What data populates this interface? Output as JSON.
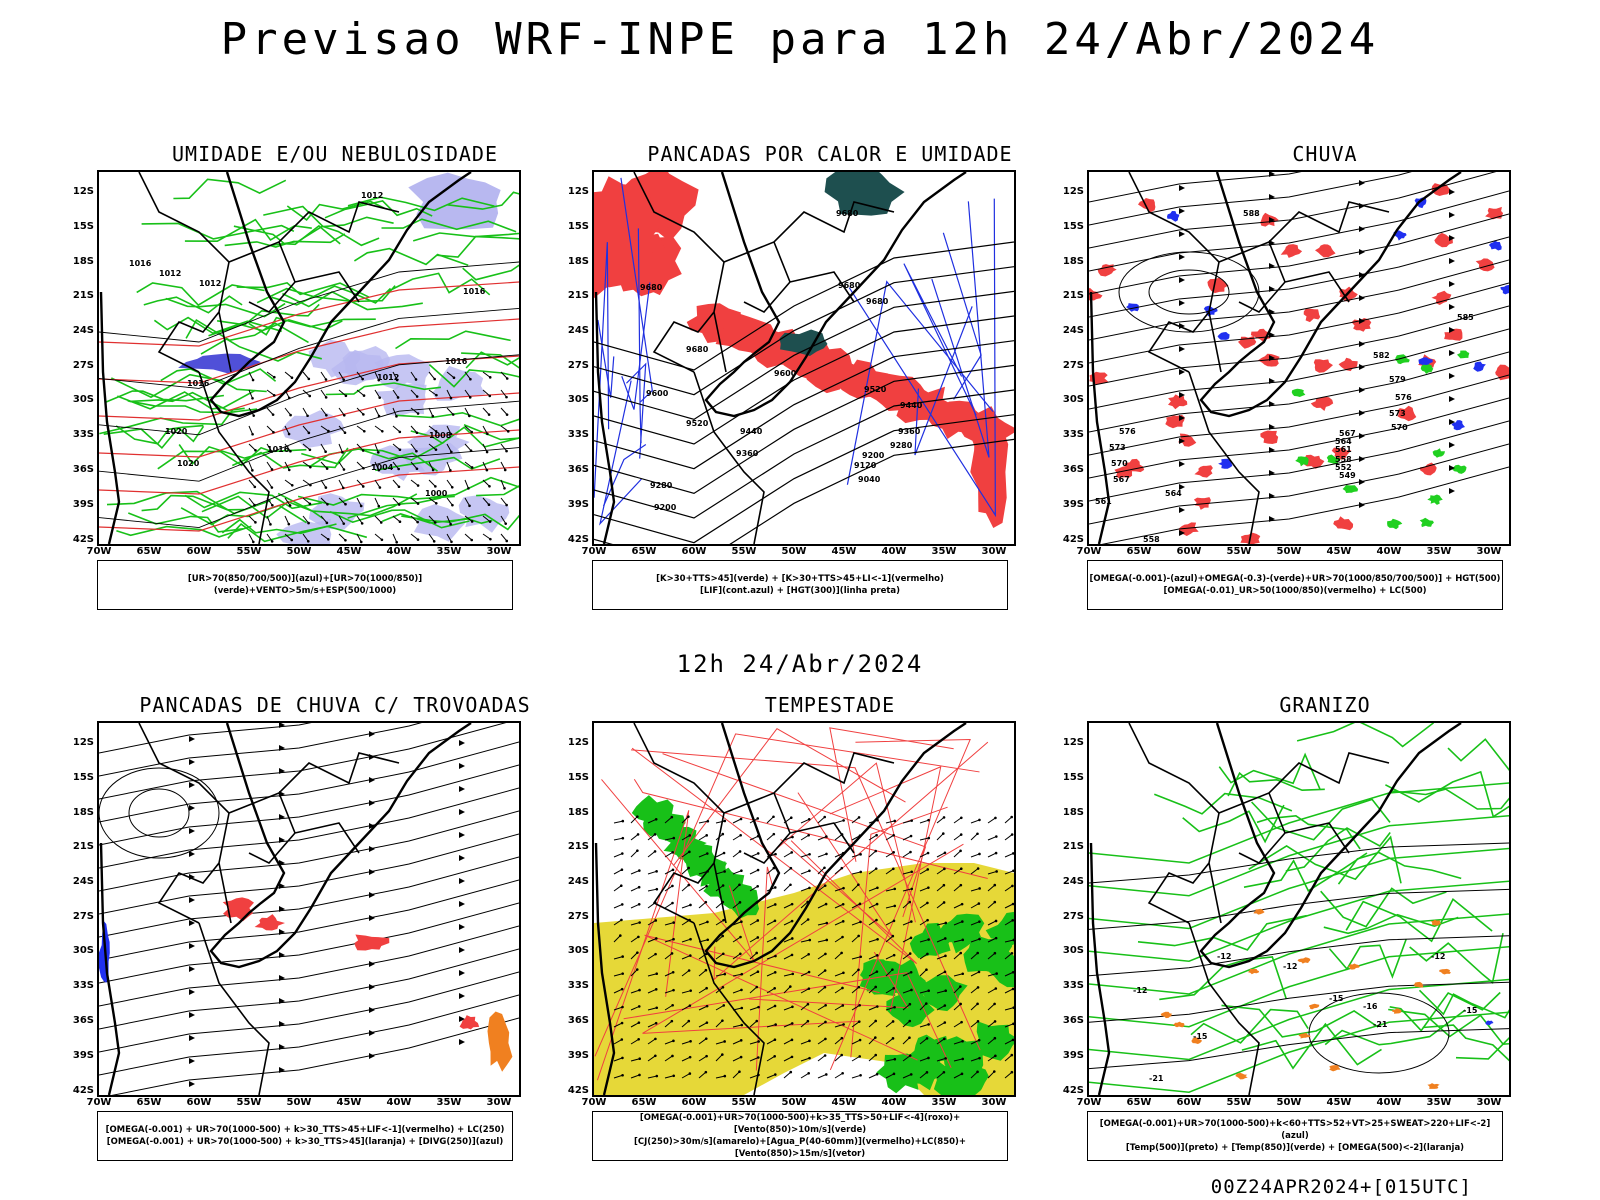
{
  "title": "Previsao WRF-INPE  para 12h 24/Abr/2024",
  "mid_title": "12h 24/Abr/2024",
  "footer": "00Z24APR2024+[015UTC]",
  "y_ticks": [
    "12S",
    "15S",
    "18S",
    "21S",
    "24S",
    "27S",
    "30S",
    "33S",
    "36S",
    "39S",
    "42S"
  ],
  "x_ticks": [
    "70W",
    "65W",
    "60W",
    "55W",
    "50W",
    "45W",
    "40W",
    "35W",
    "30W"
  ],
  "panels": [
    {
      "title": "UMIDADE E/OU NEBULOSIDADE",
      "legend": [
        "[UR>70(850/700/500)](azul)+[UR>70(1000/850)](verde)+VENTO>5m/s+ESP(500/1000)"
      ],
      "labels": [
        {
          "t": "1012",
          "x": 262,
          "y": 26
        },
        {
          "t": "1016",
          "x": 30,
          "y": 94
        },
        {
          "t": "1012",
          "x": 60,
          "y": 104
        },
        {
          "t": "1012",
          "x": 100,
          "y": 114
        },
        {
          "t": "1016",
          "x": 364,
          "y": 122
        },
        {
          "t": "1016",
          "x": 346,
          "y": 192
        },
        {
          "t": "1012",
          "x": 278,
          "y": 208
        },
        {
          "t": "1016",
          "x": 88,
          "y": 214
        },
        {
          "t": "1020",
          "x": 66,
          "y": 262
        },
        {
          "t": "1016",
          "x": 168,
          "y": 280
        },
        {
          "t": "1008",
          "x": 330,
          "y": 266
        },
        {
          "t": "1020",
          "x": 78,
          "y": 294
        },
        {
          "t": "1004",
          "x": 272,
          "y": 298
        },
        {
          "t": "1000",
          "x": 326,
          "y": 324
        }
      ]
    },
    {
      "title": "PANCADAS POR CALOR E UMIDADE",
      "legend": [
        "[K>30+TTS>45](verde) + [K>30+TTS>45+LI<-1](vermelho)",
        "[LIF](cont.azul) + [HGT(300)](linha preta)"
      ],
      "labels": [
        {
          "t": "9680",
          "x": 242,
          "y": 44
        },
        {
          "t": "9680",
          "x": 46,
          "y": 118
        },
        {
          "t": "9680",
          "x": 244,
          "y": 116
        },
        {
          "t": "9680",
          "x": 272,
          "y": 132
        },
        {
          "t": "9680",
          "x": 92,
          "y": 180
        },
        {
          "t": "9600",
          "x": 180,
          "y": 204
        },
        {
          "t": "9520",
          "x": 270,
          "y": 220
        },
        {
          "t": "9600",
          "x": 52,
          "y": 224
        },
        {
          "t": "9440",
          "x": 306,
          "y": 236
        },
        {
          "t": "9520",
          "x": 92,
          "y": 254
        },
        {
          "t": "9440",
          "x": 146,
          "y": 262
        },
        {
          "t": "9360",
          "x": 304,
          "y": 262
        },
        {
          "t": "9360",
          "x": 142,
          "y": 284
        },
        {
          "t": "9280",
          "x": 296,
          "y": 276
        },
        {
          "t": "9200",
          "x": 268,
          "y": 286
        },
        {
          "t": "9120",
          "x": 260,
          "y": 296
        },
        {
          "t": "9040",
          "x": 264,
          "y": 310
        },
        {
          "t": "9280",
          "x": 56,
          "y": 316
        },
        {
          "t": "9200",
          "x": 60,
          "y": 338
        }
      ]
    },
    {
      "title": "CHUVA",
      "legend": [
        "[OMEGA(-0.001)-(azul)+OMEGA(-0.3)-(verde)+UR>70(1000/850/700/500)] + HGT(500)",
        "[OMEGA(-0.01)_UR>50(1000/850)(vermelho) + LC(500)"
      ],
      "labels": [
        {
          "t": "588",
          "x": 154,
          "y": 44
        },
        {
          "t": "585",
          "x": 368,
          "y": 148
        },
        {
          "t": "582",
          "x": 284,
          "y": 186
        },
        {
          "t": "579",
          "x": 300,
          "y": 210
        },
        {
          "t": "576",
          "x": 306,
          "y": 228
        },
        {
          "t": "573",
          "x": 300,
          "y": 244
        },
        {
          "t": "570",
          "x": 302,
          "y": 258
        },
        {
          "t": "567",
          "x": 250,
          "y": 264
        },
        {
          "t": "564",
          "x": 246,
          "y": 272
        },
        {
          "t": "561",
          "x": 246,
          "y": 280
        },
        {
          "t": "558",
          "x": 246,
          "y": 290
        },
        {
          "t": "552",
          "x": 246,
          "y": 298
        },
        {
          "t": "549",
          "x": 250,
          "y": 306
        },
        {
          "t": "576",
          "x": 30,
          "y": 262
        },
        {
          "t": "573",
          "x": 20,
          "y": 278
        },
        {
          "t": "570",
          "x": 22,
          "y": 294
        },
        {
          "t": "567",
          "x": 24,
          "y": 310
        },
        {
          "t": "564",
          "x": 76,
          "y": 324
        },
        {
          "t": "561",
          "x": 6,
          "y": 332
        },
        {
          "t": "558",
          "x": 54,
          "y": 370
        }
      ]
    },
    {
      "title": "PANCADAS DE CHUVA C/ TROVOADAS",
      "legend": [
        "[OMEGA(-0.001) + UR>70(1000-500) + k>30_TTS>45+LIF<-1](vermelho) + LC(250)",
        "[OMEGA(-0.001) + UR>70(1000-500) + k>30_TTS>45](laranja) + [DIVG(250)](azul)"
      ],
      "labels": []
    },
    {
      "title": "TEMPESTADE",
      "legend": [
        "[OMEGA(-0.001)+UR>70(1000-500)+k>35_TTS>50+LIF<-4](roxo)+[Vento(850)>10m/s](verde)",
        "[CJ(250)>30m/s](amarelo)+[Agua_P(40-60mm)](vermelho)+LC(850)+[Vento(850)>15m/s](vetor)"
      ],
      "labels": []
    },
    {
      "title": "GRANIZO",
      "legend": [
        "[OMEGA(-0.001)+UR>70(1000-500)+k<60+TTS>52+VT>25+SWEAT>220+LIF<-2](azul)",
        "[Temp(500)](preto) + [Temp(850)](verde) + [OMEGA(500)<-2](laranja)"
      ],
      "labels": [
        {
          "t": "-12",
          "x": 128,
          "y": 236
        },
        {
          "t": "-12",
          "x": 194,
          "y": 246
        },
        {
          "t": "-12",
          "x": 342,
          "y": 236
        },
        {
          "t": "-12",
          "x": 44,
          "y": 270
        },
        {
          "t": "-15",
          "x": 240,
          "y": 278
        },
        {
          "t": "-16",
          "x": 274,
          "y": 286
        },
        {
          "t": "-15",
          "x": 374,
          "y": 290
        },
        {
          "t": "-15",
          "x": 104,
          "y": 316
        },
        {
          "t": "-21",
          "x": 284,
          "y": 304
        },
        {
          "t": "-21",
          "x": 60,
          "y": 358
        }
      ]
    }
  ]
}
